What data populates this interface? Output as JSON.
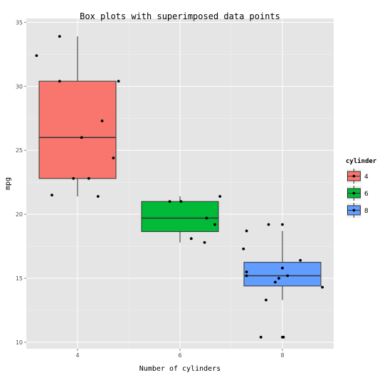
{
  "chart_data": {
    "type": "box",
    "title": "Box plots with superimposed data points",
    "xlabel": "Number of cylinders",
    "ylabel": "mpg",
    "categories": [
      "4",
      "6",
      "8"
    ],
    "ylim": [
      9.5,
      35.3
    ],
    "yticks": [
      10,
      15,
      20,
      25,
      30,
      35
    ],
    "grid": true,
    "legend": {
      "title": "cylinder",
      "position": "right",
      "entries": [
        {
          "label": "4",
          "color": "#F8766D"
        },
        {
          "label": "6",
          "color": "#00BA38"
        },
        {
          "label": "8",
          "color": "#619CFF"
        }
      ]
    },
    "boxes": [
      {
        "category": "4",
        "whisker_low": 21.4,
        "q1": 22.8,
        "median": 26.0,
        "q3": 30.4,
        "whisker_high": 33.9,
        "color": "#F8766D"
      },
      {
        "category": "6",
        "whisker_low": 17.8,
        "q1": 18.65,
        "median": 19.7,
        "q3": 21.0,
        "whisker_high": 21.4,
        "color": "#00BA38"
      },
      {
        "category": "8",
        "whisker_low": 13.3,
        "q1": 14.4,
        "median": 15.2,
        "q3": 16.25,
        "whisker_high": 18.7,
        "color": "#619CFF"
      }
    ],
    "points": [
      {
        "x": 3.65,
        "y": 33.9
      },
      {
        "x": 3.2,
        "y": 32.4
      },
      {
        "x": 3.65,
        "y": 30.4
      },
      {
        "x": 4.8,
        "y": 30.4
      },
      {
        "x": 4.48,
        "y": 27.3
      },
      {
        "x": 4.08,
        "y": 26.0
      },
      {
        "x": 4.7,
        "y": 24.4
      },
      {
        "x": 3.92,
        "y": 22.8
      },
      {
        "x": 4.22,
        "y": 22.8
      },
      {
        "x": 3.5,
        "y": 21.5
      },
      {
        "x": 4.4,
        "y": 21.4
      },
      {
        "x": 5.8,
        "y": 21.0
      },
      {
        "x": 6.02,
        "y": 21.0
      },
      {
        "x": 6.78,
        "y": 21.4
      },
      {
        "x": 6.52,
        "y": 19.7
      },
      {
        "x": 6.68,
        "y": 19.2
      },
      {
        "x": 6.22,
        "y": 18.1
      },
      {
        "x": 6.48,
        "y": 17.8
      },
      {
        "x": 7.73,
        "y": 19.2
      },
      {
        "x": 8.0,
        "y": 19.2
      },
      {
        "x": 7.3,
        "y": 18.7
      },
      {
        "x": 7.24,
        "y": 17.3
      },
      {
        "x": 8.35,
        "y": 16.4
      },
      {
        "x": 8.0,
        "y": 15.8
      },
      {
        "x": 7.3,
        "y": 15.5
      },
      {
        "x": 7.3,
        "y": 15.2
      },
      {
        "x": 8.1,
        "y": 15.2
      },
      {
        "x": 7.93,
        "y": 15.0
      },
      {
        "x": 7.86,
        "y": 14.7
      },
      {
        "x": 8.78,
        "y": 14.3
      },
      {
        "x": 7.68,
        "y": 13.3
      },
      {
        "x": 7.58,
        "y": 10.4
      },
      {
        "x": 8.0,
        "y": 10.4
      },
      {
        "x": 8.02,
        "y": 10.4
      }
    ]
  }
}
